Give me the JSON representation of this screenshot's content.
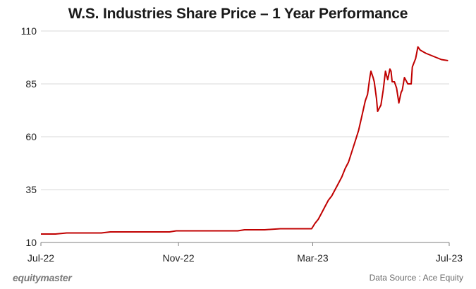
{
  "chart_data": {
    "type": "line",
    "title": "W.S. Industries Share Price – 1 Year Performance",
    "xlabel": "",
    "ylabel": "",
    "ylim": [
      10,
      110
    ],
    "yticks": [
      10,
      35,
      60,
      85,
      110
    ],
    "xticks": [
      {
        "label": "Jul-22",
        "date": "2022-07-01"
      },
      {
        "label": "Nov-22",
        "date": "2022-11-01"
      },
      {
        "label": "Mar-23",
        "date": "2023-03-01"
      },
      {
        "label": "Jul-23",
        "date": "2023-07-01"
      }
    ],
    "grid": "horizontal",
    "legend": "none",
    "series": [
      {
        "color": "#c00000",
        "points": [
          [
            "2022-07-01",
            14
          ],
          [
            "2022-07-14",
            14
          ],
          [
            "2022-07-24",
            14.5
          ],
          [
            "2022-08-24",
            14.5
          ],
          [
            "2022-09-01",
            15
          ],
          [
            "2022-10-24",
            15
          ],
          [
            "2022-10-30",
            15.5
          ],
          [
            "2022-12-24",
            15.5
          ],
          [
            "2022-12-30",
            16
          ],
          [
            "2023-01-17",
            16
          ],
          [
            "2023-01-31",
            16.5
          ],
          [
            "2023-02-28",
            16.5
          ],
          [
            "2023-03-03",
            19
          ],
          [
            "2023-03-06",
            21
          ],
          [
            "2023-03-09",
            24
          ],
          [
            "2023-03-12",
            27
          ],
          [
            "2023-03-15",
            30
          ],
          [
            "2023-03-18",
            32
          ],
          [
            "2023-03-21",
            35
          ],
          [
            "2023-03-24",
            38
          ],
          [
            "2023-03-27",
            41
          ],
          [
            "2023-03-30",
            45
          ],
          [
            "2023-04-02",
            48
          ],
          [
            "2023-04-05",
            53
          ],
          [
            "2023-04-08",
            58
          ],
          [
            "2023-04-11",
            63
          ],
          [
            "2023-04-14",
            70
          ],
          [
            "2023-04-17",
            77
          ],
          [
            "2023-04-19",
            80
          ],
          [
            "2023-04-21",
            88
          ],
          [
            "2023-04-22",
            91
          ],
          [
            "2023-04-24",
            88
          ],
          [
            "2023-04-25",
            86
          ],
          [
            "2023-04-27",
            78
          ],
          [
            "2023-04-28",
            72
          ],
          [
            "2023-05-01",
            75
          ],
          [
            "2023-05-03",
            82
          ],
          [
            "2023-05-05",
            91
          ],
          [
            "2023-05-07",
            87
          ],
          [
            "2023-05-09",
            92
          ],
          [
            "2023-05-10",
            91
          ],
          [
            "2023-05-11",
            86
          ],
          [
            "2023-05-13",
            86
          ],
          [
            "2023-05-15",
            83
          ],
          [
            "2023-05-17",
            76
          ],
          [
            "2023-05-19",
            81
          ],
          [
            "2023-05-20",
            82
          ],
          [
            "2023-05-22",
            88
          ],
          [
            "2023-05-23",
            87
          ],
          [
            "2023-05-25",
            85
          ],
          [
            "2023-05-28",
            85
          ],
          [
            "2023-05-29",
            93
          ],
          [
            "2023-06-01",
            97
          ],
          [
            "2023-06-03",
            102.5
          ],
          [
            "2023-06-05",
            101
          ],
          [
            "2023-06-10",
            99.5
          ],
          [
            "2023-06-17",
            98
          ],
          [
            "2023-06-24",
            96.5
          ],
          [
            "2023-06-30",
            96
          ]
        ]
      }
    ]
  },
  "footer": {
    "brand": "equitymaster",
    "source": "Data Source : Ace Equity"
  }
}
